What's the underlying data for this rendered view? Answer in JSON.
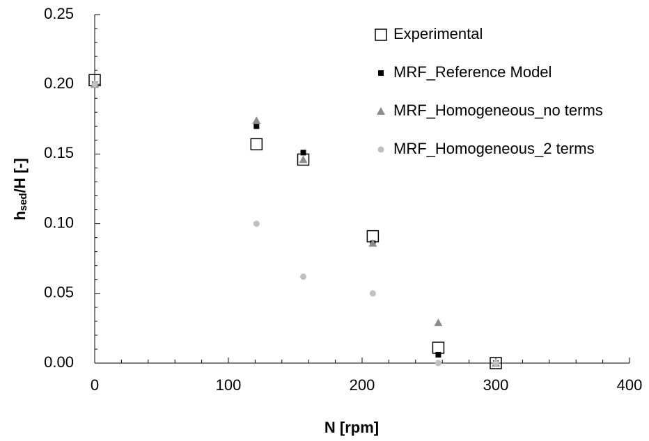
{
  "chart_data": {
    "type": "scatter",
    "x_label": "N [rpm]",
    "y_label": [
      "h",
      "sed",
      "/H [-]"
    ],
    "x": [
      0,
      121,
      156,
      208,
      257,
      300
    ],
    "series": [
      {
        "name": "Experimental",
        "marker": "square-open",
        "color": "#000000",
        "values": [
          0.203,
          0.157,
          0.146,
          0.091,
          0.011,
          0
        ]
      },
      {
        "name": "MRF_Reference Model",
        "marker": "square",
        "color": "#000000",
        "values": [
          0.2,
          0.17,
          0.151,
          0.086,
          0.006,
          0
        ]
      },
      {
        "name": "MRF_Homogeneous_no terms",
        "marker": "triangle",
        "color": "#8c8c8c",
        "values": [
          0.2,
          0.174,
          0.146,
          0.086,
          0.029,
          0
        ]
      },
      {
        "name": "MRF_Homogeneous_2 terms",
        "marker": "circle",
        "color": "#c0c0c0",
        "values": [
          0.2,
          0.1,
          0.062,
          0.05,
          0,
          0
        ]
      }
    ],
    "xlim": [
      0,
      400
    ],
    "ylim": [
      0,
      0.25
    ],
    "xticks": [
      0,
      100,
      200,
      300,
      400
    ],
    "yticks": [
      {
        "value": 0,
        "label": "0.00"
      },
      0.05,
      {
        "value": 0.1,
        "label": "0.10"
      },
      0.15,
      {
        "value": 0.2,
        "label": "0.20"
      },
      0.25
    ],
    "xminor": [
      20,
      40,
      60,
      80,
      120,
      140,
      160,
      180,
      220,
      240,
      260,
      280,
      320,
      340,
      360,
      380
    ],
    "yminor": [
      0.01,
      0.02,
      0.03,
      0.04,
      0.06,
      0.07,
      0.08,
      0.09,
      0.11,
      0.12,
      0.13,
      0.14,
      0.16,
      0.17,
      0.18,
      0.19,
      0.21,
      0.22,
      0.23,
      0.24
    ],
    "legend": "upper right",
    "grid": false
  }
}
